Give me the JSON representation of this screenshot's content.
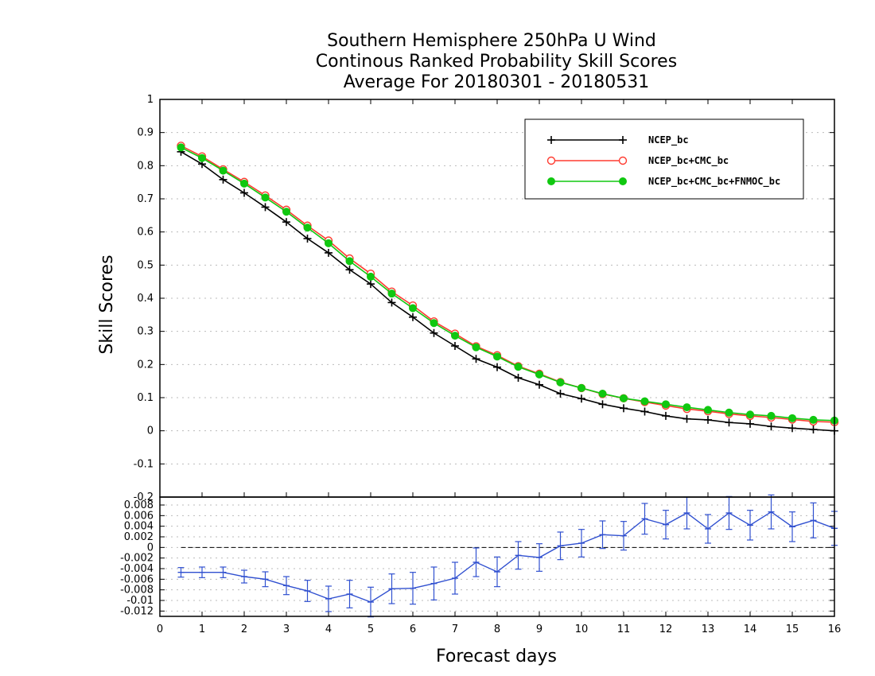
{
  "chart_data": [
    {
      "type": "line",
      "title": [
        "Southern Hemisphere 250hPa U Wind",
        "Continous Ranked Probability Skill Scores",
        "Average For 20180301 - 20180531"
      ],
      "ylabel": "Skill Scores",
      "ylim": [
        -0.2,
        1
      ],
      "yticks": [
        "-0.2",
        "-0.1",
        "0",
        "0.1",
        "0.2",
        "0.3",
        "0.4",
        "0.5",
        "0.6",
        "0.7",
        "0.8",
        "0.9",
        "1"
      ],
      "grid": true,
      "legend_position": "top-right",
      "x": [
        0.5,
        1,
        1.5,
        2,
        2.5,
        3,
        3.5,
        4,
        4.5,
        5,
        5.5,
        6,
        6.5,
        7,
        7.5,
        8,
        8.5,
        9,
        9.5,
        10,
        10.5,
        11,
        11.5,
        12,
        12.5,
        13,
        13.5,
        14,
        14.5,
        15,
        15.5,
        16
      ],
      "series": [
        {
          "name": "NCEP_bc",
          "color": "#000000",
          "marker": "plus",
          "values": [
            0.842,
            0.805,
            0.758,
            0.718,
            0.675,
            0.63,
            0.58,
            0.537,
            0.486,
            0.443,
            0.387,
            0.343,
            0.295,
            0.256,
            0.217,
            0.192,
            0.16,
            0.139,
            0.112,
            0.097,
            0.08,
            0.068,
            0.058,
            0.045,
            0.036,
            0.033,
            0.025,
            0.021,
            0.013,
            0.008,
            0.004,
            0.0
          ]
        },
        {
          "name": "NCEP_bc+CMC_bc",
          "color": "#ff3b30",
          "marker": "open-circle",
          "values": [
            0.86,
            0.828,
            0.789,
            0.751,
            0.71,
            0.667,
            0.619,
            0.574,
            0.52,
            0.474,
            0.42,
            0.378,
            0.33,
            0.293,
            0.255,
            0.228,
            0.195,
            0.172,
            0.147,
            0.129,
            0.111,
            0.098,
            0.087,
            0.076,
            0.066,
            0.059,
            0.051,
            0.045,
            0.04,
            0.034,
            0.028,
            0.026
          ]
        },
        {
          "name": "NCEP_bc+CMC_bc+FNMOC_bc",
          "color": "#10c810",
          "marker": "filled-circle",
          "values": [
            0.855,
            0.823,
            0.785,
            0.746,
            0.704,
            0.661,
            0.613,
            0.566,
            0.512,
            0.465,
            0.414,
            0.37,
            0.325,
            0.287,
            0.252,
            0.224,
            0.193,
            0.17,
            0.146,
            0.129,
            0.112,
            0.098,
            0.089,
            0.08,
            0.071,
            0.063,
            0.055,
            0.049,
            0.045,
            0.038,
            0.033,
            0.031
          ]
        }
      ]
    },
    {
      "type": "line",
      "xlabel": "Forecast days",
      "xlim": [
        0,
        16
      ],
      "xticks": [
        "0",
        "1",
        "2",
        "3",
        "4",
        "5",
        "6",
        "7",
        "8",
        "9",
        "10",
        "11",
        "12",
        "13",
        "14",
        "15",
        "16"
      ],
      "ylim": [
        -0.013,
        0.0095
      ],
      "yticks": [
        "-0.012",
        "-0.01",
        "-0.008",
        "-0.006",
        "-0.004",
        "-0.002",
        "0",
        "0.002",
        "0.004",
        "0.006",
        "0.008"
      ],
      "grid": true,
      "reference_line": 0,
      "x": [
        0.5,
        1,
        1.5,
        2,
        2.5,
        3,
        3.5,
        4,
        4.5,
        5,
        5.5,
        6,
        6.5,
        7,
        7.5,
        8,
        8.5,
        9,
        9.5,
        10,
        10.5,
        11,
        11.5,
        12,
        12.5,
        13,
        13.5,
        14,
        14.5,
        15,
        15.5,
        16
      ],
      "series": [
        {
          "color": "#3050d0",
          "marker": "errorbar",
          "values": [
            -0.0047,
            -0.0047,
            -0.0047,
            -0.0055,
            -0.006,
            -0.0072,
            -0.0082,
            -0.0097,
            -0.0088,
            -0.0103,
            -0.0078,
            -0.0077,
            -0.0068,
            -0.0058,
            -0.0028,
            -0.0046,
            -0.0015,
            -0.0019,
            0.0003,
            0.0008,
            0.0024,
            0.0022,
            0.0054,
            0.0043,
            0.0065,
            0.0035,
            0.0065,
            0.0042,
            0.0067,
            0.0039,
            0.0051,
            0.0036
          ],
          "errors": [
            0.0009,
            0.001,
            0.001,
            0.0012,
            0.0014,
            0.0017,
            0.002,
            0.0024,
            0.0026,
            0.0028,
            0.0028,
            0.003,
            0.0031,
            0.003,
            0.0027,
            0.0028,
            0.0026,
            0.0026,
            0.0026,
            0.0026,
            0.0026,
            0.0027,
            0.0029,
            0.0027,
            0.003,
            0.0027,
            0.0031,
            0.0028,
            0.0032,
            0.0028,
            0.0033,
            0.0032
          ]
        }
      ]
    }
  ]
}
